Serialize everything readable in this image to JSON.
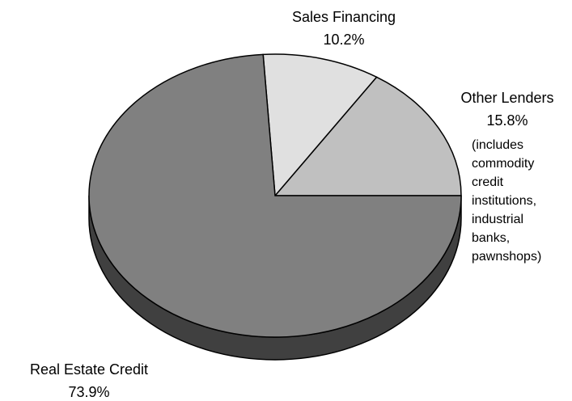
{
  "chart_data": {
    "type": "pie",
    "categories": [
      "Other Lenders",
      "Sales Financing",
      "Real Estate Credit"
    ],
    "values": [
      15.8,
      10.2,
      73.9
    ],
    "value_labels": [
      "15.8%",
      "10.2%",
      "73.9%"
    ],
    "colors": [
      "#c0c0c0",
      "#e0e0e0",
      "#808080"
    ],
    "side_color": "#404040",
    "annotations": [
      "(includes commodity credit institutions, industrial banks, pawnshops)"
    ]
  }
}
